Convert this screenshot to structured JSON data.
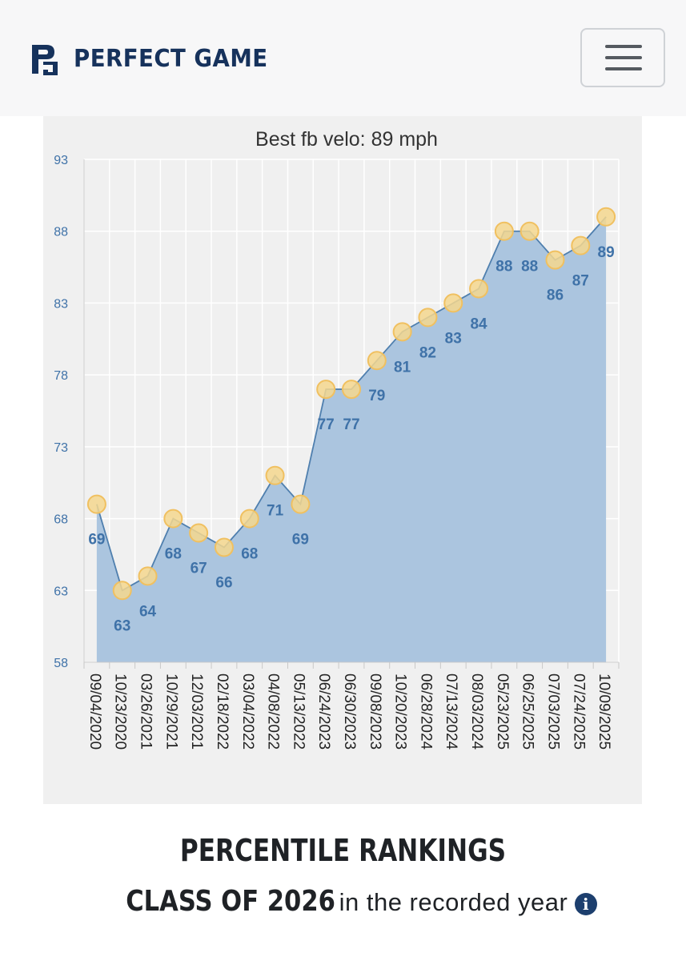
{
  "header": {
    "brand_name": "PERFECT GAME",
    "logo_icon": "pg-logo-icon",
    "menu_icon": "hamburger-menu-icon"
  },
  "chart_data": {
    "type": "area",
    "title": "Best fb velo: 89 mph",
    "xlabel": "",
    "ylabel": "",
    "categories": [
      "09/04/2020",
      "10/23/2020",
      "03/26/2021",
      "10/29/2021",
      "12/03/2021",
      "02/18/2022",
      "03/04/2022",
      "04/08/2022",
      "05/13/2022",
      "06/24/2023",
      "06/30/2023",
      "09/08/2023",
      "10/20/2023",
      "06/28/2024",
      "07/13/2024",
      "08/03/2024",
      "05/23/2025",
      "06/25/2025",
      "07/03/2025",
      "07/24/2025",
      "10/09/2025"
    ],
    "values": [
      69,
      63,
      64,
      68,
      67,
      66,
      68,
      71,
      69,
      77,
      77,
      79,
      81,
      82,
      83,
      84,
      88,
      88,
      86,
      87,
      89
    ],
    "ylim": [
      58,
      93
    ],
    "yticks": [
      58,
      63,
      68,
      73,
      78,
      83,
      88,
      93
    ],
    "grid": true,
    "legend": "none",
    "colors": {
      "area": "#a7c2dd",
      "line": "#4f7fae",
      "marker_fill": "#f5d78e",
      "marker_stroke": "#f0c060",
      "label": "#3f72a8",
      "axis_text": "#3f72a8"
    }
  },
  "footer": {
    "title": "PERCENTILE RANKINGS",
    "class_label": "CLASS OF 2026",
    "recorded_text": "in the recorded year",
    "info_glyph": "i"
  }
}
